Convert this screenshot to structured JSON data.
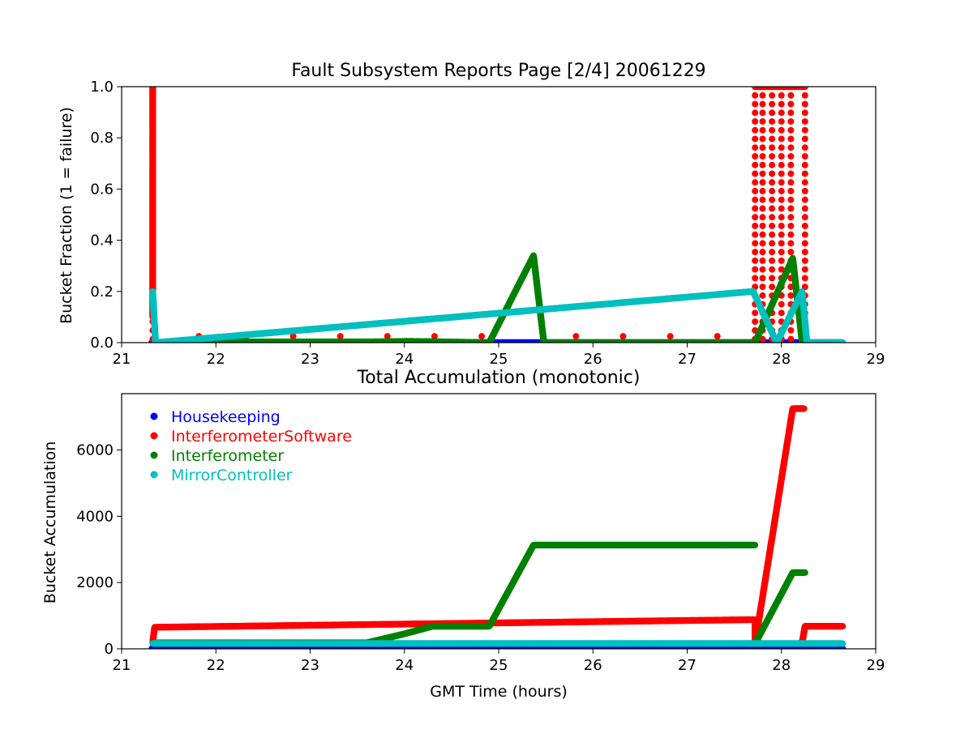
{
  "colors": {
    "Housekeeping": "#0000ff",
    "InterferometerSoftware": "#ff0000",
    "Interferometer": "#008000",
    "MirrorController": "#00bfbf"
  },
  "legend": {
    "placement": "upper-left",
    "entries": [
      "Housekeeping",
      "InterferometerSoftware",
      "Interferometer",
      "MirrorController"
    ]
  },
  "chart_data": [
    {
      "type": "scatter",
      "title": "Fault Subsystem Reports Page [2/4] 20061229",
      "xlabel": "",
      "ylabel": "Bucket Fraction (1 = failure)",
      "xlim": [
        21,
        29
      ],
      "ylim": [
        0,
        1.0
      ],
      "x_ticks": [
        "21",
        "22",
        "23",
        "24",
        "25",
        "26",
        "27",
        "28",
        "29"
      ],
      "y_ticks": [
        "0.0",
        "0.2",
        "0.4",
        "0.6",
        "0.8",
        "1.0"
      ],
      "grid": false,
      "series": [
        {
          "name": "Housekeeping",
          "color": "#0000ff",
          "points": [
            [
              21.32,
              0
            ],
            [
              24.0,
              0
            ],
            [
              27.7,
              0
            ],
            [
              27.85,
              0
            ],
            [
              28.0,
              0
            ],
            [
              28.65,
              0
            ]
          ]
        },
        {
          "name": "InterferometerSoftware",
          "color": "#ff0000",
          "points": [
            [
              21.33,
              1.0
            ],
            [
              21.33,
              0.1
            ],
            [
              21.82,
              0.025
            ],
            [
              22.32,
              0.025
            ],
            [
              22.82,
              0.025
            ],
            [
              23.32,
              0.025
            ],
            [
              23.82,
              0.025
            ],
            [
              24.32,
              0.025
            ],
            [
              24.82,
              0.025
            ],
            [
              25.82,
              0.025
            ],
            [
              26.32,
              0.025
            ],
            [
              26.82,
              0.025
            ],
            [
              27.32,
              0.025
            ],
            [
              27.72,
              1.0
            ],
            [
              27.8,
              1.0
            ],
            [
              27.9,
              1.0
            ],
            [
              28.0,
              1.0
            ],
            [
              28.1,
              1.0
            ],
            [
              28.25,
              1.0
            ]
          ]
        },
        {
          "name": "Interferometer",
          "color": "#008000",
          "points": [
            [
              21.65,
              0.003
            ],
            [
              23.65,
              0.003
            ],
            [
              24.05,
              0.005
            ],
            [
              24.9,
              0.0
            ],
            [
              25.37,
              0.34
            ],
            [
              25.48,
              0.0
            ],
            [
              27.72,
              0.0
            ],
            [
              28.12,
              0.33
            ],
            [
              28.22,
              0.0
            ]
          ]
        },
        {
          "name": "MirrorController",
          "color": "#00bfbf",
          "points": [
            [
              21.33,
              0.2
            ],
            [
              21.36,
              0.0
            ],
            [
              27.7,
              0.2
            ],
            [
              27.95,
              0.0
            ],
            [
              28.22,
              0.2
            ],
            [
              28.27,
              0.0
            ],
            [
              28.65,
              0.0
            ]
          ]
        }
      ]
    },
    {
      "type": "scatter",
      "title": "Total Accumulation (monotonic)",
      "xlabel": "GMT Time (hours)",
      "ylabel": "Bucket Accumulation",
      "xlim": [
        21,
        29
      ],
      "ylim": [
        0,
        7700
      ],
      "x_ticks": [
        "21",
        "22",
        "23",
        "24",
        "25",
        "26",
        "27",
        "28",
        "29"
      ],
      "y_ticks": [
        "0",
        "2000",
        "4000",
        "6000"
      ],
      "y_tick_values": [
        0,
        2000,
        4000,
        6000
      ],
      "grid": false,
      "series": [
        {
          "name": "Housekeeping",
          "color": "#0000ff",
          "points": [
            [
              21.32,
              0
            ],
            [
              28.65,
              0
            ]
          ]
        },
        {
          "name": "InterferometerSoftware",
          "color": "#ff0000",
          "points": [
            [
              21.33,
              200
            ],
            [
              21.35,
              650
            ],
            [
              27.72,
              880
            ],
            [
              27.72,
              150
            ],
            [
              28.12,
              7250
            ],
            [
              28.24,
              7250
            ],
            [
              28.22,
              200
            ],
            [
              28.25,
              680
            ],
            [
              28.65,
              680
            ]
          ]
        },
        {
          "name": "Interferometer",
          "color": "#008000",
          "points": [
            [
              21.33,
              180
            ],
            [
              23.6,
              180
            ],
            [
              24.0,
              450
            ],
            [
              24.3,
              680
            ],
            [
              24.9,
              680
            ],
            [
              25.37,
              3130
            ],
            [
              27.72,
              3130
            ],
            [
              27.72,
              150
            ],
            [
              28.12,
              2300
            ],
            [
              28.25,
              2300
            ]
          ]
        },
        {
          "name": "MirrorController",
          "color": "#00bfbf",
          "points": [
            [
              21.33,
              160
            ],
            [
              28.65,
              160
            ]
          ]
        }
      ]
    }
  ]
}
